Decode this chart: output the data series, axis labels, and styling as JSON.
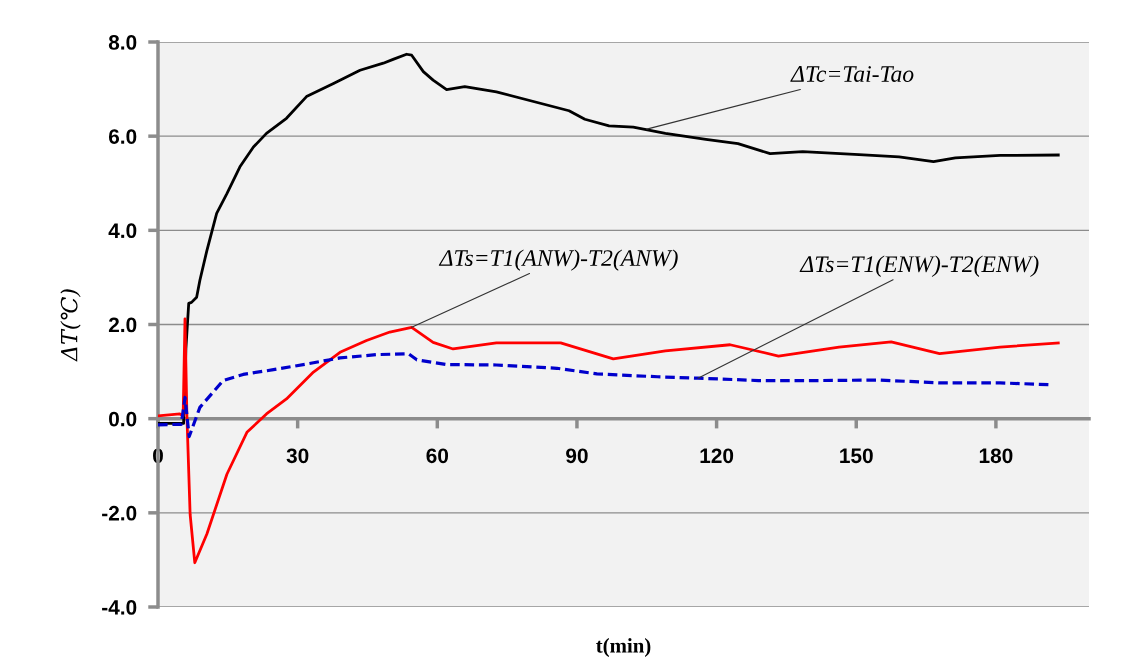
{
  "chart_data": {
    "type": "line",
    "xlabel": "t(min)",
    "ylabel": "ΔT(℃)",
    "xlim": [
      0,
      200
    ],
    "xticks": [
      0,
      30,
      60,
      90,
      120,
      150,
      180
    ],
    "ylim": [
      -4,
      8
    ],
    "yticks": [
      {
        "value": -4,
        "label": "-4.0"
      },
      {
        "value": -2,
        "label": "-2.0"
      },
      {
        "value": 0,
        "label": "0.0"
      },
      {
        "value": 2,
        "label": "2.0"
      },
      {
        "value": 4,
        "label": "4.0"
      },
      {
        "value": 6,
        "label": "6.0"
      },
      {
        "value": 8,
        "label": "8.0"
      }
    ],
    "grid": "y",
    "series": [
      {
        "color": "#000000",
        "line_style": "solid",
        "x": [
          0,
          5.5,
          6.0,
          6.6,
          7.2,
          8.3,
          9.0,
          10.5,
          12.6,
          14.8,
          17.6,
          20.5,
          23.3,
          27.6,
          31.9,
          37.7,
          43.4,
          48.4,
          50.5,
          53.4,
          54.5,
          57.0,
          59.1,
          62.0,
          65.9,
          72.7,
          88.3,
          91.7,
          96.9,
          102.1,
          109,
          117.7,
          124.6,
          131.5,
          138.5,
          150.6,
          159.2,
          166.6,
          171.3,
          180.9,
          193.4
        ],
        "values": [
          -0.1,
          -0.1,
          1.5,
          2.45,
          2.47,
          2.58,
          2.94,
          3.57,
          4.36,
          4.78,
          5.35,
          5.77,
          6.06,
          6.38,
          6.84,
          7.12,
          7.4,
          7.55,
          7.63,
          7.74,
          7.72,
          7.37,
          7.19,
          6.99,
          7.05,
          6.94,
          6.54,
          6.36,
          6.22,
          6.19,
          6.06,
          5.93,
          5.84,
          5.63,
          5.67,
          5.61,
          5.56,
          5.46,
          5.54,
          5.59,
          5.6
        ]
      },
      {
        "color": "#ff0000",
        "line_style": "solid",
        "x": [
          0,
          4.7,
          5.4,
          5.8,
          6.2,
          6.9,
          7.9,
          10.5,
          14.8,
          19.1,
          23.3,
          27.6,
          33.4,
          39.1,
          44.8,
          49.8,
          54.5,
          59.1,
          63.4,
          72.7,
          86.5,
          97.8,
          109,
          122.9,
          133.3,
          146.3,
          157.5,
          167.9,
          180.9,
          193.4
        ],
        "values": [
          0.06,
          0.1,
          0.06,
          2.12,
          0.1,
          -2.03,
          -3.06,
          -2.45,
          -1.18,
          -0.29,
          0.1,
          0.42,
          0.99,
          1.41,
          1.66,
          1.84,
          1.94,
          1.62,
          1.48,
          1.61,
          1.61,
          1.27,
          1.44,
          1.57,
          1.33,
          1.52,
          1.63,
          1.38,
          1.52,
          1.61
        ]
      },
      {
        "color": "#0000cc",
        "line_style": "dashed",
        "x": [
          0,
          5.0,
          5.8,
          6.7,
          9,
          14,
          18.3,
          24.8,
          31.9,
          39.1,
          47,
          53.8,
          55.6,
          62,
          72.7,
          85.7,
          94.3,
          107.3,
          116,
          129,
          142,
          155,
          167.9,
          180.9,
          192.1
        ],
        "values": [
          -0.13,
          -0.12,
          0.45,
          -0.38,
          0.24,
          0.81,
          0.94,
          1.04,
          1.16,
          1.29,
          1.36,
          1.38,
          1.25,
          1.15,
          1.14,
          1.07,
          0.95,
          0.89,
          0.86,
          0.81,
          0.81,
          0.82,
          0.76,
          0.76,
          0.72
        ]
      }
    ],
    "annotations": [
      {
        "text": "ΔTc=Tai-Tao",
        "x": 105,
        "y": 6.15
      },
      {
        "text": "ΔTs=T1(ANW)-T2(ANW)",
        "x": 54.5,
        "y": 1.94
      },
      {
        "text": "ΔTs=T1(ENW)-T2(ENW)",
        "x": 116,
        "y": 0.86
      }
    ]
  }
}
